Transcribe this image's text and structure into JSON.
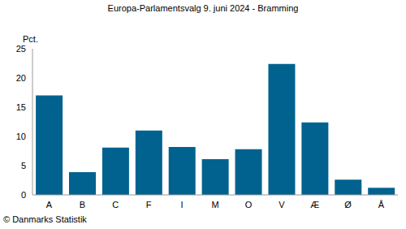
{
  "chart_data": {
    "type": "bar",
    "title": "Europa-Parlamentsvalg 9. juni 2024 - Bramming",
    "ylabel": "Pct.",
    "source": "© Danmarks Statistik",
    "categories": [
      "A",
      "B",
      "C",
      "F",
      "I",
      "M",
      "O",
      "V",
      "Æ",
      "Ø",
      "Å"
    ],
    "values": [
      17.0,
      3.9,
      8.1,
      11.0,
      8.2,
      6.1,
      7.8,
      22.4,
      12.4,
      2.6,
      1.2
    ],
    "color": "#02628f",
    "ylim": [
      0,
      25
    ],
    "yticks": [
      0,
      5,
      10,
      15,
      20,
      25
    ],
    "grid": false
  }
}
